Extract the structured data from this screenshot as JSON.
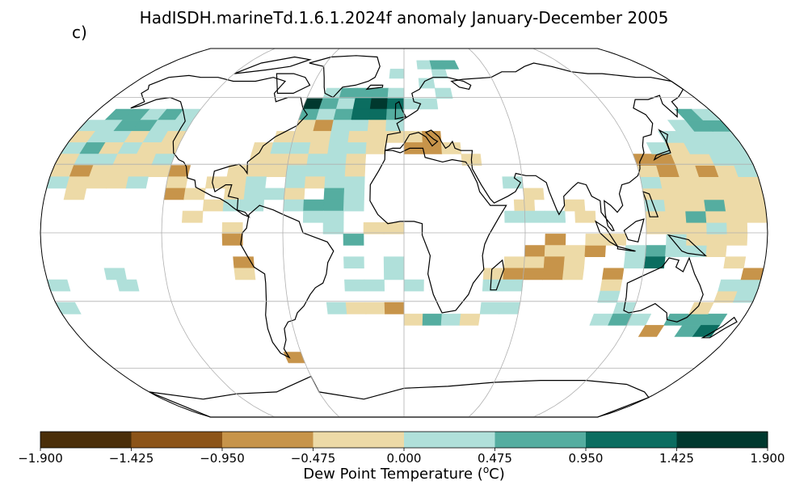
{
  "title": "HadISDH.marineTd.1.6.1.2024f anomaly January-December 2005",
  "panel_label": "c)",
  "projection": "Robinson",
  "colorbar": {
    "label_prefix": "Dew Point Temperature (",
    "label_unit_sup": "o",
    "label_suffix": "C)",
    "ticks": [
      "−1.900",
      "−1.425",
      "−0.950",
      "−0.475",
      "0.000",
      "0.475",
      "0.950",
      "1.425",
      "1.900"
    ],
    "colors": [
      "#4a2e09",
      "#8c5418",
      "#c7944a",
      "#eddaa7",
      "#b0e0da",
      "#55ada0",
      "#0b6d60",
      "#00382e"
    ]
  },
  "colors": {
    "ocean_grid_line": "#b0b0b0",
    "coast": "#000000",
    "missing": "#ffffff"
  },
  "anomaly_cells_note_free": true,
  "anomaly_cells": [
    {
      "lon": -165,
      "lat": 52,
      "c": 5
    },
    {
      "lon": -155,
      "lat": 52,
      "c": 5
    },
    {
      "lon": -145,
      "lat": 52,
      "c": 4
    },
    {
      "lon": -135,
      "lat": 52,
      "c": 5
    },
    {
      "lon": -125,
      "lat": 52,
      "c": 4
    },
    {
      "lon": -175,
      "lat": 47,
      "c": 4
    },
    {
      "lon": -165,
      "lat": 47,
      "c": 4
    },
    {
      "lon": -155,
      "lat": 47,
      "c": 5
    },
    {
      "lon": -145,
      "lat": 47,
      "c": 5
    },
    {
      "lon": -135,
      "lat": 47,
      "c": 4
    },
    {
      "lon": -125,
      "lat": 47,
      "c": 4
    },
    {
      "lon": -175,
      "lat": 42,
      "c": 3
    },
    {
      "lon": -165,
      "lat": 42,
      "c": 4
    },
    {
      "lon": -155,
      "lat": 42,
      "c": 4
    },
    {
      "lon": -145,
      "lat": 42,
      "c": 3
    },
    {
      "lon": -135,
      "lat": 42,
      "c": 4
    },
    {
      "lon": -125,
      "lat": 42,
      "c": 3
    },
    {
      "lon": -175,
      "lat": 37,
      "c": 4
    },
    {
      "lon": -165,
      "lat": 37,
      "c": 5
    },
    {
      "lon": -155,
      "lat": 37,
      "c": 3
    },
    {
      "lon": -145,
      "lat": 37,
      "c": 4
    },
    {
      "lon": -135,
      "lat": 37,
      "c": 3
    },
    {
      "lon": -125,
      "lat": 37,
      "c": 3
    },
    {
      "lon": -175,
      "lat": 32,
      "c": 3
    },
    {
      "lon": -165,
      "lat": 32,
      "c": 4
    },
    {
      "lon": -155,
      "lat": 32,
      "c": 4
    },
    {
      "lon": -145,
      "lat": 32,
      "c": 3
    },
    {
      "lon": -135,
      "lat": 32,
      "c": 3
    },
    {
      "lon": -125,
      "lat": 32,
      "c": 4
    },
    {
      "lon": -175,
      "lat": 27,
      "c": 3
    },
    {
      "lon": -165,
      "lat": 27,
      "c": 2
    },
    {
      "lon": -155,
      "lat": 27,
      "c": 3
    },
    {
      "lon": -145,
      "lat": 27,
      "c": 3
    },
    {
      "lon": -135,
      "lat": 27,
      "c": 3
    },
    {
      "lon": -125,
      "lat": 27,
      "c": 3
    },
    {
      "lon": -115,
      "lat": 27,
      "c": 2
    },
    {
      "lon": -175,
      "lat": 22,
      "c": 4
    },
    {
      "lon": -165,
      "lat": 22,
      "c": 3
    },
    {
      "lon": -155,
      "lat": 22,
      "c": 3
    },
    {
      "lon": -145,
      "lat": 22,
      "c": 3
    },
    {
      "lon": -135,
      "lat": 22,
      "c": 4
    },
    {
      "lon": -115,
      "lat": 22,
      "c": 3
    },
    {
      "lon": -165,
      "lat": 17,
      "c": 3
    },
    {
      "lon": -115,
      "lat": 17,
      "c": 2
    },
    {
      "lon": -105,
      "lat": 17,
      "c": 3
    },
    {
      "lon": -95,
      "lat": 12,
      "c": 3
    },
    {
      "lon": -105,
      "lat": 7,
      "c": 3
    },
    {
      "lon": -85,
      "lat": 2,
      "c": 3
    },
    {
      "lon": -85,
      "lat": -3,
      "c": 2
    },
    {
      "lon": -80,
      "lat": -13,
      "c": 2
    },
    {
      "lon": -80,
      "lat": -18,
      "c": 3
    },
    {
      "lon": -175,
      "lat": -23,
      "c": 4
    },
    {
      "lon": -145,
      "lat": -18,
      "c": 4
    },
    {
      "lon": -140,
      "lat": -23,
      "c": 4
    },
    {
      "lon": -175,
      "lat": -33,
      "c": 4
    },
    {
      "lon": -45,
      "lat": 62,
      "c": 4
    },
    {
      "lon": -35,
      "lat": 62,
      "c": 5
    },
    {
      "lon": -25,
      "lat": 62,
      "c": 5
    },
    {
      "lon": -15,
      "lat": 62,
      "c": 5
    },
    {
      "lon": -5,
      "lat": 62,
      "c": 4
    },
    {
      "lon": -55,
      "lat": 57,
      "c": 7
    },
    {
      "lon": -45,
      "lat": 57,
      "c": 5
    },
    {
      "lon": -35,
      "lat": 57,
      "c": 4
    },
    {
      "lon": -25,
      "lat": 57,
      "c": 6
    },
    {
      "lon": -15,
      "lat": 57,
      "c": 7
    },
    {
      "lon": -5,
      "lat": 57,
      "c": 6
    },
    {
      "lon": -55,
      "lat": 52,
      "c": 5
    },
    {
      "lon": -45,
      "lat": 52,
      "c": 4
    },
    {
      "lon": -35,
      "lat": 52,
      "c": 5
    },
    {
      "lon": -25,
      "lat": 52,
      "c": 6
    },
    {
      "lon": -15,
      "lat": 52,
      "c": 6
    },
    {
      "lon": -5,
      "lat": 52,
      "c": 5
    },
    {
      "lon": -55,
      "lat": 47,
      "c": 3
    },
    {
      "lon": -45,
      "lat": 47,
      "c": 2
    },
    {
      "lon": -35,
      "lat": 47,
      "c": 4
    },
    {
      "lon": -25,
      "lat": 47,
      "c": 4
    },
    {
      "lon": -15,
      "lat": 47,
      "c": 3
    },
    {
      "lon": -5,
      "lat": 47,
      "c": 4
    },
    {
      "lon": -65,
      "lat": 42,
      "c": 3
    },
    {
      "lon": -55,
      "lat": 42,
      "c": 3
    },
    {
      "lon": -45,
      "lat": 42,
      "c": 3
    },
    {
      "lon": -35,
      "lat": 42,
      "c": 4
    },
    {
      "lon": -25,
      "lat": 42,
      "c": 3
    },
    {
      "lon": -15,
      "lat": 42,
      "c": 3
    },
    {
      "lon": -5,
      "lat": 42,
      "c": 3
    },
    {
      "lon": -75,
      "lat": 37,
      "c": 3
    },
    {
      "lon": -65,
      "lat": 37,
      "c": 4
    },
    {
      "lon": -55,
      "lat": 37,
      "c": 4
    },
    {
      "lon": -45,
      "lat": 37,
      "c": 3
    },
    {
      "lon": -35,
      "lat": 37,
      "c": 4
    },
    {
      "lon": -25,
      "lat": 37,
      "c": 4
    },
    {
      "lon": -15,
      "lat": 37,
      "c": 3
    },
    {
      "lon": -75,
      "lat": 32,
      "c": 3
    },
    {
      "lon": -65,
      "lat": 32,
      "c": 3
    },
    {
      "lon": -55,
      "lat": 32,
      "c": 3
    },
    {
      "lon": -45,
      "lat": 32,
      "c": 4
    },
    {
      "lon": -35,
      "lat": 32,
      "c": 4
    },
    {
      "lon": -25,
      "lat": 32,
      "c": 3
    },
    {
      "lon": -85,
      "lat": 27,
      "c": 3
    },
    {
      "lon": -75,
      "lat": 27,
      "c": 3
    },
    {
      "lon": -65,
      "lat": 27,
      "c": 3
    },
    {
      "lon": -55,
      "lat": 27,
      "c": 4
    },
    {
      "lon": -45,
      "lat": 27,
      "c": 4
    },
    {
      "lon": -35,
      "lat": 27,
      "c": 4
    },
    {
      "lon": -25,
      "lat": 27,
      "c": 3
    },
    {
      "lon": -95,
      "lat": 22,
      "c": 3
    },
    {
      "lon": -85,
      "lat": 22,
      "c": 3
    },
    {
      "lon": -75,
      "lat": 22,
      "c": 4
    },
    {
      "lon": -55,
      "lat": 22,
      "c": 4
    },
    {
      "lon": -45,
      "lat": 22,
      "c": 3
    },
    {
      "lon": -35,
      "lat": 22,
      "c": 4
    },
    {
      "lon": -25,
      "lat": 22,
      "c": 4
    },
    {
      "lon": -85,
      "lat": 17,
      "c": 3
    },
    {
      "lon": -75,
      "lat": 17,
      "c": 4
    },
    {
      "lon": -65,
      "lat": 17,
      "c": 4
    },
    {
      "lon": -55,
      "lat": 17,
      "c": 3
    },
    {
      "lon": -35,
      "lat": 17,
      "c": 5
    },
    {
      "lon": -25,
      "lat": 17,
      "c": 4
    },
    {
      "lon": -85,
      "lat": 12,
      "c": 4
    },
    {
      "lon": -75,
      "lat": 12,
      "c": 4
    },
    {
      "lon": -55,
      "lat": 12,
      "c": 4
    },
    {
      "lon": -45,
      "lat": 12,
      "c": 5
    },
    {
      "lon": -35,
      "lat": 12,
      "c": 5
    },
    {
      "lon": -25,
      "lat": 12,
      "c": 4
    },
    {
      "lon": -45,
      "lat": 7,
      "c": 4
    },
    {
      "lon": -35,
      "lat": 7,
      "c": 4
    },
    {
      "lon": -15,
      "lat": 2,
      "c": 3
    },
    {
      "lon": -5,
      "lat": 2,
      "c": 3
    },
    {
      "lon": -35,
      "lat": 2,
      "c": 4
    },
    {
      "lon": -25,
      "lat": -3,
      "c": 5
    },
    {
      "lon": -25,
      "lat": -13,
      "c": 4
    },
    {
      "lon": -5,
      "lat": -13,
      "c": 4
    },
    {
      "lon": -5,
      "lat": -18,
      "c": 4
    },
    {
      "lon": -25,
      "lat": -23,
      "c": 4
    },
    {
      "lon": -15,
      "lat": -23,
      "c": 4
    },
    {
      "lon": 5,
      "lat": -23,
      "c": 4
    },
    {
      "lon": -35,
      "lat": -33,
      "c": 4
    },
    {
      "lon": -25,
      "lat": -33,
      "c": 3
    },
    {
      "lon": -15,
      "lat": -33,
      "c": 3
    },
    {
      "lon": -5,
      "lat": -33,
      "c": 2
    },
    {
      "lon": 5,
      "lat": -38,
      "c": 3
    },
    {
      "lon": 15,
      "lat": -38,
      "c": 5
    },
    {
      "lon": 25,
      "lat": -38,
      "c": 4
    },
    {
      "lon": 35,
      "lat": -38,
      "c": 3
    },
    {
      "lon": 45,
      "lat": -33,
      "c": 4
    },
    {
      "lon": 55,
      "lat": -33,
      "c": 4
    },
    {
      "lon": -65,
      "lat": -55,
      "c": 2
    },
    {
      "lon": 5,
      "lat": 57,
      "c": 4
    },
    {
      "lon": 15,
      "lat": 57,
      "c": 4
    },
    {
      "lon": 25,
      "lat": 62,
      "c": 4
    },
    {
      "lon": 15,
      "lat": 67,
      "c": 4
    },
    {
      "lon": 25,
      "lat": 72,
      "c": 4
    },
    {
      "lon": 25,
      "lat": 77,
      "c": 5
    },
    {
      "lon": 35,
      "lat": 77,
      "c": 5
    },
    {
      "lon": 15,
      "lat": 77,
      "c": 4
    },
    {
      "lon": -5,
      "lat": 72,
      "c": 4
    },
    {
      "lon": 5,
      "lat": 42,
      "c": 3
    },
    {
      "lon": 15,
      "lat": 42,
      "c": 2
    },
    {
      "lon": 5,
      "lat": 37,
      "c": 2
    },
    {
      "lon": 15,
      "lat": 37,
      "c": 2
    },
    {
      "lon": 25,
      "lat": 37,
      "c": 3
    },
    {
      "lon": 35,
      "lat": 32,
      "c": 3
    },
    {
      "lon": 55,
      "lat": 22,
      "c": 4
    },
    {
      "lon": 65,
      "lat": 17,
      "c": 3
    },
    {
      "lon": 60,
      "lat": 12,
      "c": 3
    },
    {
      "lon": 55,
      "lat": 7,
      "c": 4
    },
    {
      "lon": 65,
      "lat": 7,
      "c": 4
    },
    {
      "lon": 75,
      "lat": 7,
      "c": 4
    },
    {
      "lon": 85,
      "lat": 12,
      "c": 3
    },
    {
      "lon": 90,
      "lat": 7,
      "c": 3
    },
    {
      "lon": 75,
      "lat": -3,
      "c": 2
    },
    {
      "lon": 65,
      "lat": -8,
      "c": 2
    },
    {
      "lon": 75,
      "lat": -8,
      "c": 3
    },
    {
      "lon": 85,
      "lat": -8,
      "c": 3
    },
    {
      "lon": 95,
      "lat": -8,
      "c": 2
    },
    {
      "lon": 65,
      "lat": -13,
      "c": 3
    },
    {
      "lon": 75,
      "lat": -13,
      "c": 2
    },
    {
      "lon": 85,
      "lat": -13,
      "c": 3
    },
    {
      "lon": 55,
      "lat": -13,
      "c": 3
    },
    {
      "lon": 45,
      "lat": -18,
      "c": 3
    },
    {
      "lon": 55,
      "lat": -18,
      "c": 2
    },
    {
      "lon": 65,
      "lat": -18,
      "c": 2
    },
    {
      "lon": 75,
      "lat": -18,
      "c": 2
    },
    {
      "lon": 85,
      "lat": -18,
      "c": 3
    },
    {
      "lon": 45,
      "lat": -23,
      "c": 4
    },
    {
      "lon": 55,
      "lat": -23,
      "c": 4
    },
    {
      "lon": 105,
      "lat": -18,
      "c": 2
    },
    {
      "lon": 105,
      "lat": -23,
      "c": 3
    },
    {
      "lon": 105,
      "lat": -28,
      "c": 4
    },
    {
      "lon": 115,
      "lat": -33,
      "c": 4
    },
    {
      "lon": 105,
      "lat": -38,
      "c": 4
    },
    {
      "lon": 115,
      "lat": -38,
      "c": 5
    },
    {
      "lon": 125,
      "lat": -38,
      "c": 4
    },
    {
      "lon": 145,
      "lat": -38,
      "c": 5
    },
    {
      "lon": 155,
      "lat": -38,
      "c": 5
    },
    {
      "lon": 165,
      "lat": -38,
      "c": 5
    },
    {
      "lon": 155,
      "lat": -43,
      "c": 5
    },
    {
      "lon": 165,
      "lat": -43,
      "c": 6
    },
    {
      "lon": 135,
      "lat": -43,
      "c": 2
    },
    {
      "lon": 155,
      "lat": -33,
      "c": 3
    },
    {
      "lon": 165,
      "lat": -28,
      "c": 3
    },
    {
      "lon": 175,
      "lat": -28,
      "c": 4
    },
    {
      "lon": 165,
      "lat": -23,
      "c": 4
    },
    {
      "lon": 175,
      "lat": -23,
      "c": 4
    },
    {
      "lon": 175,
      "lat": -18,
      "c": 2
    },
    {
      "lon": 165,
      "lat": -13,
      "c": 3
    },
    {
      "lon": 155,
      "lat": -8,
      "c": 3
    },
    {
      "lon": 145,
      "lat": -8,
      "c": 4
    },
    {
      "lon": 125,
      "lat": -8,
      "c": 5
    },
    {
      "lon": 135,
      "lat": -8,
      "c": 4
    },
    {
      "lon": 115,
      "lat": -8,
      "c": 4
    },
    {
      "lon": 115,
      "lat": -13,
      "c": 4
    },
    {
      "lon": 125,
      "lat": -13,
      "c": 6
    },
    {
      "lon": 135,
      "lat": -3,
      "c": 4
    },
    {
      "lon": 145,
      "lat": -3,
      "c": 3
    },
    {
      "lon": 155,
      "lat": -3,
      "c": 3
    },
    {
      "lon": 165,
      "lat": -3,
      "c": 3
    },
    {
      "lon": 125,
      "lat": 2,
      "c": 3
    },
    {
      "lon": 135,
      "lat": 2,
      "c": 3
    },
    {
      "lon": 145,
      "lat": 2,
      "c": 3
    },
    {
      "lon": 155,
      "lat": 2,
      "c": 4
    },
    {
      "lon": 165,
      "lat": 2,
      "c": 3
    },
    {
      "lon": 125,
      "lat": 7,
      "c": 3
    },
    {
      "lon": 135,
      "lat": 7,
      "c": 3
    },
    {
      "lon": 145,
      "lat": 7,
      "c": 5
    },
    {
      "lon": 155,
      "lat": 7,
      "c": 3
    },
    {
      "lon": 165,
      "lat": 7,
      "c": 3
    },
    {
      "lon": 175,
      "lat": 7,
      "c": 3
    },
    {
      "lon": 125,
      "lat": 12,
      "c": 4
    },
    {
      "lon": 135,
      "lat": 12,
      "c": 3
    },
    {
      "lon": 145,
      "lat": 12,
      "c": 3
    },
    {
      "lon": 155,
      "lat": 12,
      "c": 5
    },
    {
      "lon": 165,
      "lat": 12,
      "c": 3
    },
    {
      "lon": 175,
      "lat": 12,
      "c": 3
    },
    {
      "lon": 125,
      "lat": 17,
      "c": 3
    },
    {
      "lon": 135,
      "lat": 17,
      "c": 3
    },
    {
      "lon": 145,
      "lat": 17,
      "c": 3
    },
    {
      "lon": 155,
      "lat": 17,
      "c": 3
    },
    {
      "lon": 165,
      "lat": 17,
      "c": 3
    },
    {
      "lon": 175,
      "lat": 17,
      "c": 3
    },
    {
      "lon": 125,
      "lat": 22,
      "c": 4
    },
    {
      "lon": 135,
      "lat": 22,
      "c": 3
    },
    {
      "lon": 145,
      "lat": 22,
      "c": 3
    },
    {
      "lon": 155,
      "lat": 22,
      "c": 3
    },
    {
      "lon": 165,
      "lat": 22,
      "c": 3
    },
    {
      "lon": 175,
      "lat": 22,
      "c": 3
    },
    {
      "lon": 125,
      "lat": 27,
      "c": 3
    },
    {
      "lon": 135,
      "lat": 27,
      "c": 2
    },
    {
      "lon": 145,
      "lat": 27,
      "c": 3
    },
    {
      "lon": 155,
      "lat": 27,
      "c": 2
    },
    {
      "lon": 165,
      "lat": 27,
      "c": 3
    },
    {
      "lon": 175,
      "lat": 27,
      "c": 4
    },
    {
      "lon": 125,
      "lat": 32,
      "c": 2
    },
    {
      "lon": 135,
      "lat": 32,
      "c": 2
    },
    {
      "lon": 145,
      "lat": 32,
      "c": 3
    },
    {
      "lon": 155,
      "lat": 32,
      "c": 3
    },
    {
      "lon": 165,
      "lat": 32,
      "c": 4
    },
    {
      "lon": 175,
      "lat": 32,
      "c": 4
    },
    {
      "lon": 135,
      "lat": 37,
      "c": 4
    },
    {
      "lon": 145,
      "lat": 37,
      "c": 3
    },
    {
      "lon": 155,
      "lat": 37,
      "c": 4
    },
    {
      "lon": 165,
      "lat": 37,
      "c": 4
    },
    {
      "lon": 175,
      "lat": 37,
      "c": 4
    },
    {
      "lon": 145,
      "lat": 42,
      "c": 4
    },
    {
      "lon": 155,
      "lat": 42,
      "c": 4
    },
    {
      "lon": 165,
      "lat": 42,
      "c": 4
    },
    {
      "lon": 175,
      "lat": 42,
      "c": 4
    },
    {
      "lon": 155,
      "lat": 47,
      "c": 4
    },
    {
      "lon": 165,
      "lat": 47,
      "c": 5
    },
    {
      "lon": 175,
      "lat": 47,
      "c": 5
    },
    {
      "lon": 165,
      "lat": 52,
      "c": 5
    },
    {
      "lon": 175,
      "lat": 52,
      "c": 4
    },
    {
      "lon": 95,
      "lat": -3,
      "c": 3
    },
    {
      "lon": 105,
      "lat": -3,
      "c": 3
    }
  ]
}
